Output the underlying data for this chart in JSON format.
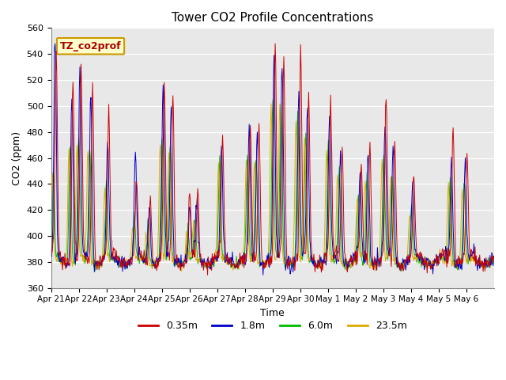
{
  "title": "Tower CO2 Profile Concentrations",
  "xlabel": "Time",
  "ylabel": "CO2 (ppm)",
  "ylim": [
    360,
    560
  ],
  "yticks": [
    360,
    380,
    400,
    420,
    440,
    460,
    480,
    500,
    520,
    540,
    560
  ],
  "colors": [
    "#cc0000",
    "#0000cc",
    "#00bb00",
    "#ddaa00"
  ],
  "annotation_text": "TZ_co2prof",
  "annotation_bg": "#ffffcc",
  "annotation_border": "#cc9900",
  "bg_color": "#e8e8e8",
  "n_days": 16,
  "points_per_day": 48,
  "x_tick_labels": [
    "Apr 21",
    "Apr 22",
    "Apr 23",
    "Apr 24",
    "Apr 25",
    "Apr 26",
    "Apr 27",
    "Apr 28",
    "Apr 29",
    "Apr 30",
    "May 1",
    "May 2",
    "May 3",
    "May 4",
    "May 5",
    "May 6"
  ],
  "figsize": [
    6.4,
    4.8
  ],
  "dpi": 100
}
